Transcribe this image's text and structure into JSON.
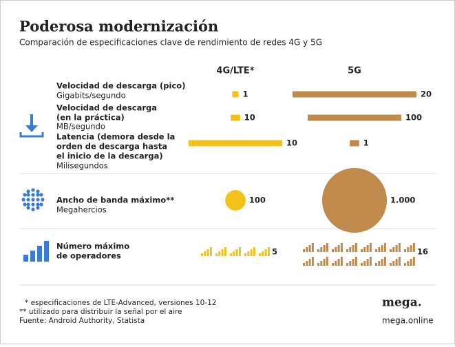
{
  "header": {
    "title": "Poderosa modernización",
    "subtitle": "Comparación de especificaciones clave de rendimiento de redes 4G y 5G"
  },
  "columns": [
    {
      "name": "4G/LTE*",
      "color": "#f2c21b"
    },
    {
      "name": "5G",
      "color": "#bf8a4c"
    }
  ],
  "rows": [
    {
      "type": "bar",
      "title": [
        "Velocidad de descarga (pico)"
      ],
      "unit": "Gigabits/segundo",
      "values": [
        1,
        20
      ]
    },
    {
      "type": "bar",
      "title": [
        "Velocidad de descarga",
        "(en la práctica)"
      ],
      "unit": "MB/segundo",
      "values": [
        10,
        100
      ]
    },
    {
      "type": "bar",
      "title": [
        "Latencia (demora desde la",
        "orden de descarga hasta",
        "el inicio de la descarga)"
      ],
      "unit": "Milisegundos",
      "values": [
        10,
        1
      ]
    },
    {
      "type": "circle",
      "title": [
        "Ancho de banda máximo**"
      ],
      "unit": "Megahercios",
      "values": [
        100,
        1000
      ],
      "value_labels": [
        "100",
        "1.000"
      ]
    },
    {
      "type": "icons",
      "title": [
        "Número máximo",
        "de operadores"
      ],
      "values": [
        5,
        16
      ]
    }
  ],
  "footnotes": [
    "* especificaciones de LTE-Advanced, versiones 10-12",
    "** utilizado para distribuir la señal por el aire",
    "Fuente: Android Authority, Statista"
  ],
  "brand": {
    "logo": "mega.",
    "url": "mega.online"
  }
}
